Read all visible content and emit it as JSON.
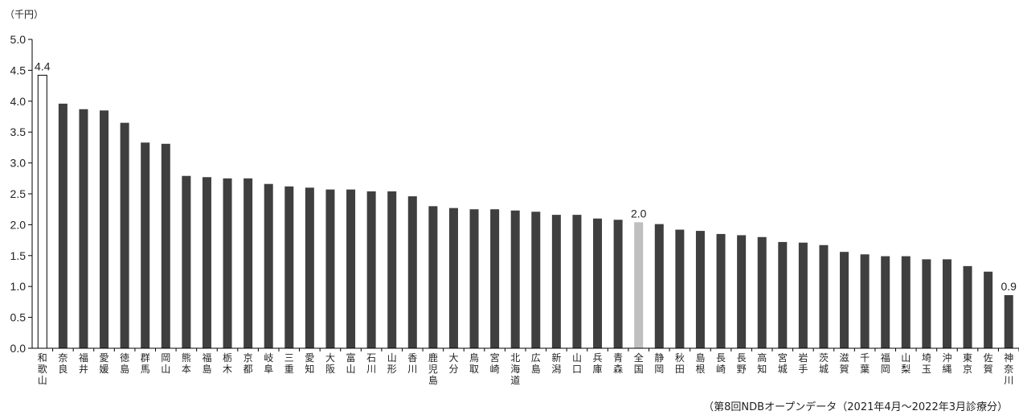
{
  "chart_data": {
    "type": "bar",
    "y_unit": "（千円）",
    "ylim": [
      0,
      5
    ],
    "yticks": [
      "0.0",
      "0.5",
      "1.0",
      "1.5",
      "2.0",
      "2.5",
      "3.0",
      "3.5",
      "4.0",
      "4.5",
      "5.0"
    ],
    "categories": [
      "和歌山",
      "奈良",
      "福井",
      "愛媛",
      "徳島",
      "群馬",
      "岡山",
      "熊本",
      "福島",
      "栃木",
      "京都",
      "岐阜",
      "三重",
      "愛知",
      "大阪",
      "富山",
      "石川",
      "山形",
      "香川",
      "鹿児島",
      "大分",
      "鳥取",
      "宮崎",
      "北海道",
      "広島",
      "新潟",
      "山口",
      "兵庫",
      "青森",
      "全国",
      "静岡",
      "秋田",
      "島根",
      "長崎",
      "長野",
      "高知",
      "宮城",
      "岩手",
      "茨城",
      "滋賀",
      "千葉",
      "福岡",
      "山梨",
      "埼玉",
      "沖縄",
      "東京",
      "佐賀",
      "神奈川"
    ],
    "values": [
      4.42,
      3.96,
      3.87,
      3.85,
      3.65,
      3.33,
      3.31,
      2.79,
      2.77,
      2.75,
      2.75,
      2.66,
      2.62,
      2.6,
      2.57,
      2.57,
      2.54,
      2.54,
      2.46,
      2.3,
      2.27,
      2.25,
      2.25,
      2.23,
      2.21,
      2.16,
      2.16,
      2.1,
      2.08,
      2.04,
      2.01,
      1.92,
      1.9,
      1.85,
      1.83,
      1.8,
      1.72,
      1.71,
      1.67,
      1.56,
      1.52,
      1.49,
      1.49,
      1.44,
      1.44,
      1.33,
      1.24,
      0.86
    ],
    "bar_styles": {
      "highest": "outline",
      "national": "gray",
      "default": "dark"
    },
    "highlight": {
      "highest": "和歌山",
      "national": "全国",
      "lowest": "神奈川"
    },
    "data_labels": [
      {
        "category": "和歌山",
        "text": "4.4"
      },
      {
        "category": "全国",
        "text": "2.0"
      },
      {
        "category": "神奈川",
        "text": "0.9"
      }
    ],
    "colors": {
      "default": "#3f3f3f",
      "national": "#bfbfbf",
      "outline_fill": "#ffffff",
      "outline_stroke": "#000000",
      "axis": "#000000"
    },
    "source": "（第8回NDBオープンデータ（2021年4月～2022年3月診療分）"
  }
}
